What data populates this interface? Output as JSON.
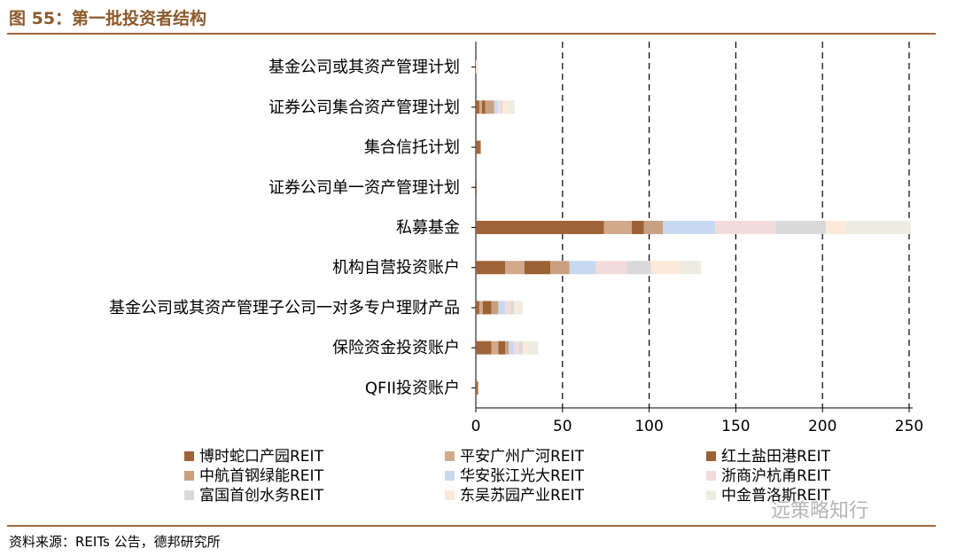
{
  "figure_title": "图 55：第一批投资者结构",
  "source": "资料来源：REITs 公告，德邦研究所",
  "watermark": "远策略知行",
  "chart_data": {
    "type": "bar",
    "orientation": "horizontal",
    "stacked": true,
    "categories": [
      "基金公司或其资产管理计划",
      "证券公司集合资产管理计划",
      "集合信托计划",
      "证券公司单一资产管理计划",
      "私募基金",
      "机构自营投资账户",
      "基金公司或其资产管理子公司一对多专户理财产品",
      "保险资金投资账户",
      "QFII投资账户"
    ],
    "series": [
      {
        "name": "博时蛇口产园REIT",
        "color": "#A0643A",
        "values": [
          0,
          2,
          1.5,
          0,
          74,
          17,
          2,
          9,
          0.8
        ]
      },
      {
        "name": "平安广州广河REIT",
        "color": "#D2A98A",
        "values": [
          0,
          1.5,
          0,
          0,
          16,
          11,
          2,
          4,
          0
        ]
      },
      {
        "name": "红土盐田港REIT",
        "color": "#9B6236",
        "values": [
          0,
          2,
          1,
          0.5,
          7,
          15,
          5,
          4,
          0.5
        ]
      },
      {
        "name": "中航首钢绿能REIT",
        "color": "#C9A080",
        "values": [
          0,
          5,
          0.5,
          0,
          11,
          11,
          4,
          2,
          0
        ]
      },
      {
        "name": "华安张江光大REIT",
        "color": "#C6D9F1",
        "values": [
          0,
          2,
          0,
          0,
          30,
          15,
          4,
          3,
          0
        ]
      },
      {
        "name": "浙商沪杭甬REIT",
        "color": "#F2DCDB",
        "values": [
          0,
          2,
          0,
          0,
          35,
          18,
          3,
          3,
          0
        ]
      },
      {
        "name": "富国首创水务REIT",
        "color": "#D9D9D9",
        "values": [
          0,
          1,
          0,
          0,
          29,
          14,
          2,
          2,
          0
        ]
      },
      {
        "name": "东吴苏园产业REIT",
        "color": "#FDE9D9",
        "values": [
          1.5,
          3,
          0,
          0,
          11,
          17,
          2,
          3,
          0
        ]
      },
      {
        "name": "中金普洛斯REIT",
        "color": "#EEECE1",
        "values": [
          0,
          4,
          0,
          0,
          38,
          12,
          3,
          6,
          0
        ]
      }
    ],
    "xlim": [
      0,
      250
    ],
    "xticks": [
      0,
      50,
      100,
      150,
      200,
      250
    ],
    "grid": "vertical-dashed",
    "legend_position": "bottom"
  }
}
